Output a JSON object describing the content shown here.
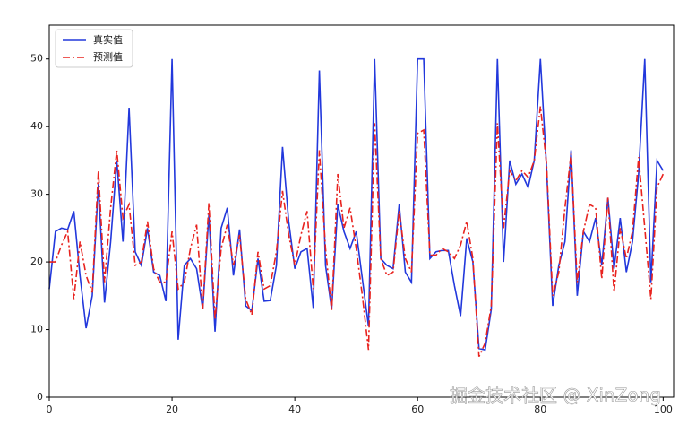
{
  "chart_data": {
    "type": "line",
    "x": [
      0,
      1,
      2,
      3,
      4,
      5,
      6,
      7,
      8,
      9,
      10,
      11,
      12,
      13,
      14,
      15,
      16,
      17,
      18,
      19,
      20,
      21,
      22,
      23,
      24,
      25,
      26,
      27,
      28,
      29,
      30,
      31,
      32,
      33,
      34,
      35,
      36,
      37,
      38,
      39,
      40,
      41,
      42,
      43,
      44,
      45,
      46,
      47,
      48,
      49,
      50,
      51,
      52,
      53,
      54,
      55,
      56,
      57,
      58,
      59,
      60,
      61,
      62,
      63,
      64,
      65,
      66,
      67,
      68,
      69,
      70,
      71,
      72,
      73,
      74,
      75,
      76,
      77,
      78,
      79,
      80,
      81,
      82,
      83,
      84,
      85,
      86,
      87,
      88,
      89,
      90,
      91,
      92,
      93,
      94,
      95,
      96,
      97,
      98,
      99,
      100
    ],
    "series": [
      {
        "name": "真实值",
        "color": "#2238dc",
        "linestyle": "solid",
        "values": [
          16,
          24.5,
          25,
          24.8,
          27.5,
          18,
          10.2,
          15,
          31.5,
          14,
          23,
          35,
          23,
          42.8,
          21.5,
          19.5,
          25,
          18.5,
          18,
          14.2,
          50,
          8.5,
          19.5,
          20.5,
          19,
          13,
          27,
          9.7,
          25,
          28,
          18,
          24.8,
          13.5,
          12.8,
          20.5,
          14.2,
          14.3,
          19.5,
          37,
          26,
          19,
          21.5,
          22,
          13.2,
          48.3,
          19.5,
          13,
          28.5,
          24.5,
          22,
          24.5,
          17.5,
          10.5,
          50,
          20.5,
          19.5,
          19,
          28.5,
          18.5,
          17,
          50,
          50,
          20.5,
          21.5,
          21.7,
          21.7,
          16.5,
          12,
          23.5,
          20,
          7.2,
          7,
          13,
          50,
          20,
          35,
          31.5,
          33,
          31,
          35,
          50,
          34,
          13.5,
          19.5,
          23,
          36.5,
          15,
          24.5,
          23,
          26.5,
          19.5,
          29.5,
          19,
          26.5,
          18.5,
          23,
          33,
          50,
          17,
          35,
          33.5
        ]
      },
      {
        "name": "预测值",
        "color": "#e8231f",
        "linestyle": "dashdot",
        "values": [
          20,
          20,
          22.5,
          24.5,
          14.5,
          23,
          18,
          15.5,
          33.5,
          17,
          28,
          36.5,
          26.5,
          28.5,
          19.5,
          20,
          26,
          19,
          17,
          17,
          24.5,
          16,
          17,
          22,
          25.5,
          13,
          28.7,
          11.5,
          22,
          25.5,
          19.5,
          24,
          14.5,
          12.2,
          21.5,
          16,
          16.5,
          21.5,
          30.5,
          24,
          19.5,
          24,
          27.5,
          16,
          36.5,
          22,
          12.8,
          33,
          25,
          28,
          22,
          15,
          7,
          40.5,
          20.5,
          18,
          18.5,
          27.5,
          20.5,
          18.5,
          39,
          39.5,
          21,
          21,
          22,
          21.5,
          20.5,
          22.5,
          26,
          20.5,
          6,
          8,
          13.5,
          40.5,
          25,
          33.5,
          32,
          33.5,
          32.5,
          35,
          43,
          34.5,
          15,
          18.5,
          28,
          36,
          17,
          24.5,
          28.5,
          28,
          17.5,
          29.5,
          15.5,
          25,
          20.5,
          24.5,
          35.5,
          25,
          14.5,
          31,
          33
        ]
      }
    ],
    "xlim": [
      0,
      101.7
    ],
    "ylim": [
      0,
      55
    ],
    "xticks": [
      0,
      20,
      40,
      60,
      80,
      100
    ],
    "yticks": [
      0,
      10,
      20,
      30,
      40,
      50
    ],
    "grid": false,
    "legend": "upper-left",
    "watermark": "掘金技术社区 @ XinZong"
  }
}
